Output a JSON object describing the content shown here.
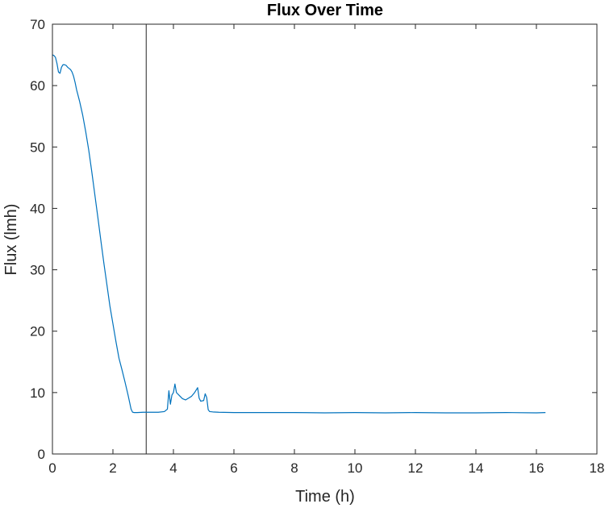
{
  "chart_data": {
    "type": "line",
    "title": "Flux Over Time",
    "xlabel": "Time (h)",
    "ylabel": "Flux (lmh)",
    "xlim": [
      0,
      18
    ],
    "ylim": [
      0,
      70
    ],
    "xticks": [
      0,
      2,
      4,
      6,
      8,
      10,
      12,
      14,
      16,
      18
    ],
    "yticks": [
      0,
      10,
      20,
      30,
      40,
      50,
      60,
      70
    ],
    "grid": false,
    "legend": "none",
    "vertical_marker_x": 3.1,
    "series_color": "#0072BD",
    "series": [
      {
        "x": [
          0.0,
          0.05,
          0.1,
          0.15,
          0.2,
          0.25,
          0.3,
          0.35,
          0.4,
          0.45,
          0.5,
          0.55,
          0.6,
          0.65,
          0.7,
          0.75,
          0.8,
          0.9,
          1.0,
          1.1,
          1.2,
          1.3,
          1.4,
          1.5,
          1.6,
          1.7,
          1.8,
          1.9,
          2.0,
          2.1,
          2.2,
          2.3,
          2.4,
          2.5,
          2.6,
          2.65,
          2.7,
          2.8,
          3.0,
          3.5,
          3.7,
          3.8,
          3.85,
          3.9,
          3.95,
          4.0,
          4.05,
          4.1,
          4.2,
          4.3,
          4.4,
          4.5,
          4.6,
          4.7,
          4.8,
          4.85,
          4.9,
          5.0,
          5.05,
          5.1,
          5.15,
          5.2,
          5.3,
          5.5,
          6.0,
          7.0,
          8.0,
          9.0,
          10.0,
          11.0,
          12.0,
          13.0,
          14.0,
          15.0,
          16.0,
          16.3
        ],
        "y": [
          65.0,
          64.9,
          64.6,
          63.6,
          62.2,
          62.0,
          63.0,
          63.4,
          63.4,
          63.3,
          63.0,
          62.8,
          62.6,
          62.2,
          61.5,
          60.5,
          59.3,
          57.4,
          55.2,
          52.5,
          49.5,
          46.0,
          42.3,
          38.6,
          34.8,
          31.1,
          27.6,
          24.1,
          21.2,
          18.3,
          15.6,
          13.7,
          11.7,
          9.6,
          7.3,
          6.8,
          6.75,
          6.75,
          6.8,
          6.8,
          6.9,
          7.3,
          10.3,
          8.1,
          9.6,
          10.0,
          11.4,
          10.0,
          9.5,
          9.0,
          8.8,
          9.1,
          9.4,
          10.0,
          10.8,
          9.1,
          8.6,
          8.7,
          9.8,
          9.2,
          7.2,
          6.9,
          6.85,
          6.8,
          6.75,
          6.75,
          6.75,
          6.7,
          6.75,
          6.7,
          6.75,
          6.7,
          6.7,
          6.75,
          6.7,
          6.75
        ]
      }
    ]
  }
}
